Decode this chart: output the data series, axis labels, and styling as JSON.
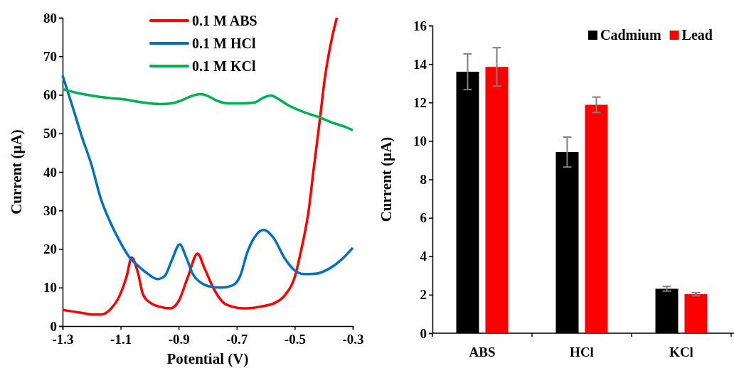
{
  "chart_data": [
    {
      "type": "line",
      "xlabel": "Potential (V)",
      "ylabel": "Current (µA)",
      "xlim": [
        -1.3,
        -0.3
      ],
      "ylim": [
        0,
        80
      ],
      "xticks": [
        -1.3,
        -1.1,
        -0.9,
        -0.7,
        -0.5,
        -0.3
      ],
      "yticks": [
        0,
        10,
        20,
        30,
        40,
        50,
        60,
        70,
        80
      ],
      "legend": "top",
      "series": [
        {
          "name": "0.1 M ABS",
          "color": "#ff0000",
          "x": [
            -1.3,
            -1.266,
            -1.225,
            -1.201,
            -1.168,
            -1.136,
            -1.103,
            -1.079,
            -1.062,
            -1.041,
            -1.022,
            -0.997,
            -0.965,
            -0.928,
            -0.9,
            -0.867,
            -0.835,
            -0.811,
            -0.778,
            -0.745,
            -0.713,
            -0.68,
            -0.647,
            -0.615,
            -0.566,
            -0.534,
            -0.501,
            -0.477,
            -0.452,
            -0.436,
            -0.416,
            -0.395,
            -0.371,
            -0.355
          ],
          "values": [
            4.2,
            3.8,
            3.3,
            3,
            3,
            4.3,
            8,
            13,
            17.8,
            14,
            8,
            6,
            5,
            4.6,
            6.5,
            13,
            18.8,
            15,
            9.5,
            6,
            5,
            4.6,
            4.7,
            5.1,
            6.1,
            8,
            12.5,
            20,
            30,
            40,
            52,
            65,
            75,
            80
          ]
        },
        {
          "name": "0.1 M HCl",
          "color": "#0070c0",
          "x": [
            -1.3,
            -1.266,
            -1.233,
            -1.201,
            -1.168,
            -1.136,
            -1.103,
            -1.071,
            -1.038,
            -1.005,
            -0.973,
            -0.948,
            -0.924,
            -0.896,
            -0.875,
            -0.851,
            -0.818,
            -0.778,
            -0.749,
            -0.713,
            -0.688,
            -0.664,
            -0.639,
            -0.607,
            -0.574,
            -0.534,
            -0.501,
            -0.468,
            -0.428,
            -0.379,
            -0.338,
            -0.3
          ],
          "values": [
            65,
            57,
            49,
            42,
            33,
            27,
            22,
            18,
            15.5,
            13.5,
            12.2,
            13,
            17,
            21.2,
            18,
            13.5,
            11,
            10.1,
            10,
            10.6,
            13,
            19,
            23,
            25,
            23,
            17.5,
            14.5,
            13.5,
            13.6,
            15,
            17.3,
            20.3
          ]
        },
        {
          "name": "0.1 M KCl",
          "color": "#00b050",
          "x": [
            -1.3,
            -1.25,
            -1.201,
            -1.144,
            -1.087,
            -1.022,
            -0.965,
            -0.924,
            -0.892,
            -0.859,
            -0.826,
            -0.802,
            -0.769,
            -0.729,
            -0.68,
            -0.639,
            -0.607,
            -0.582,
            -0.558,
            -0.525,
            -0.468,
            -0.42,
            -0.371,
            -0.33,
            -0.3
          ],
          "values": [
            61.5,
            60.5,
            59.8,
            59.2,
            58.8,
            58,
            57.6,
            57.8,
            58.5,
            59.6,
            60.2,
            59.8,
            58.5,
            57.8,
            57.8,
            58,
            59.3,
            59.8,
            59,
            57.4,
            55.5,
            54.3,
            52.8,
            51.8,
            50.8
          ]
        }
      ]
    },
    {
      "type": "bar",
      "ylabel": "Current (µA)",
      "categories": [
        "ABS",
        "HCl",
        "KCl"
      ],
      "ylim": [
        0,
        16
      ],
      "yticks": [
        0,
        2,
        4,
        6,
        8,
        10,
        12,
        14,
        16
      ],
      "legend": "top right",
      "series": [
        {
          "name": "Cadmium",
          "color": "#000000",
          "values": [
            13.6,
            9.42,
            2.31
          ],
          "errors": [
            0.93,
            0.78,
            0.12
          ]
        },
        {
          "name": "Lead",
          "color": "#ff0000",
          "values": [
            13.85,
            11.88,
            2.03
          ],
          "errors": [
            1.0,
            0.4,
            0.08
          ]
        }
      ]
    }
  ]
}
